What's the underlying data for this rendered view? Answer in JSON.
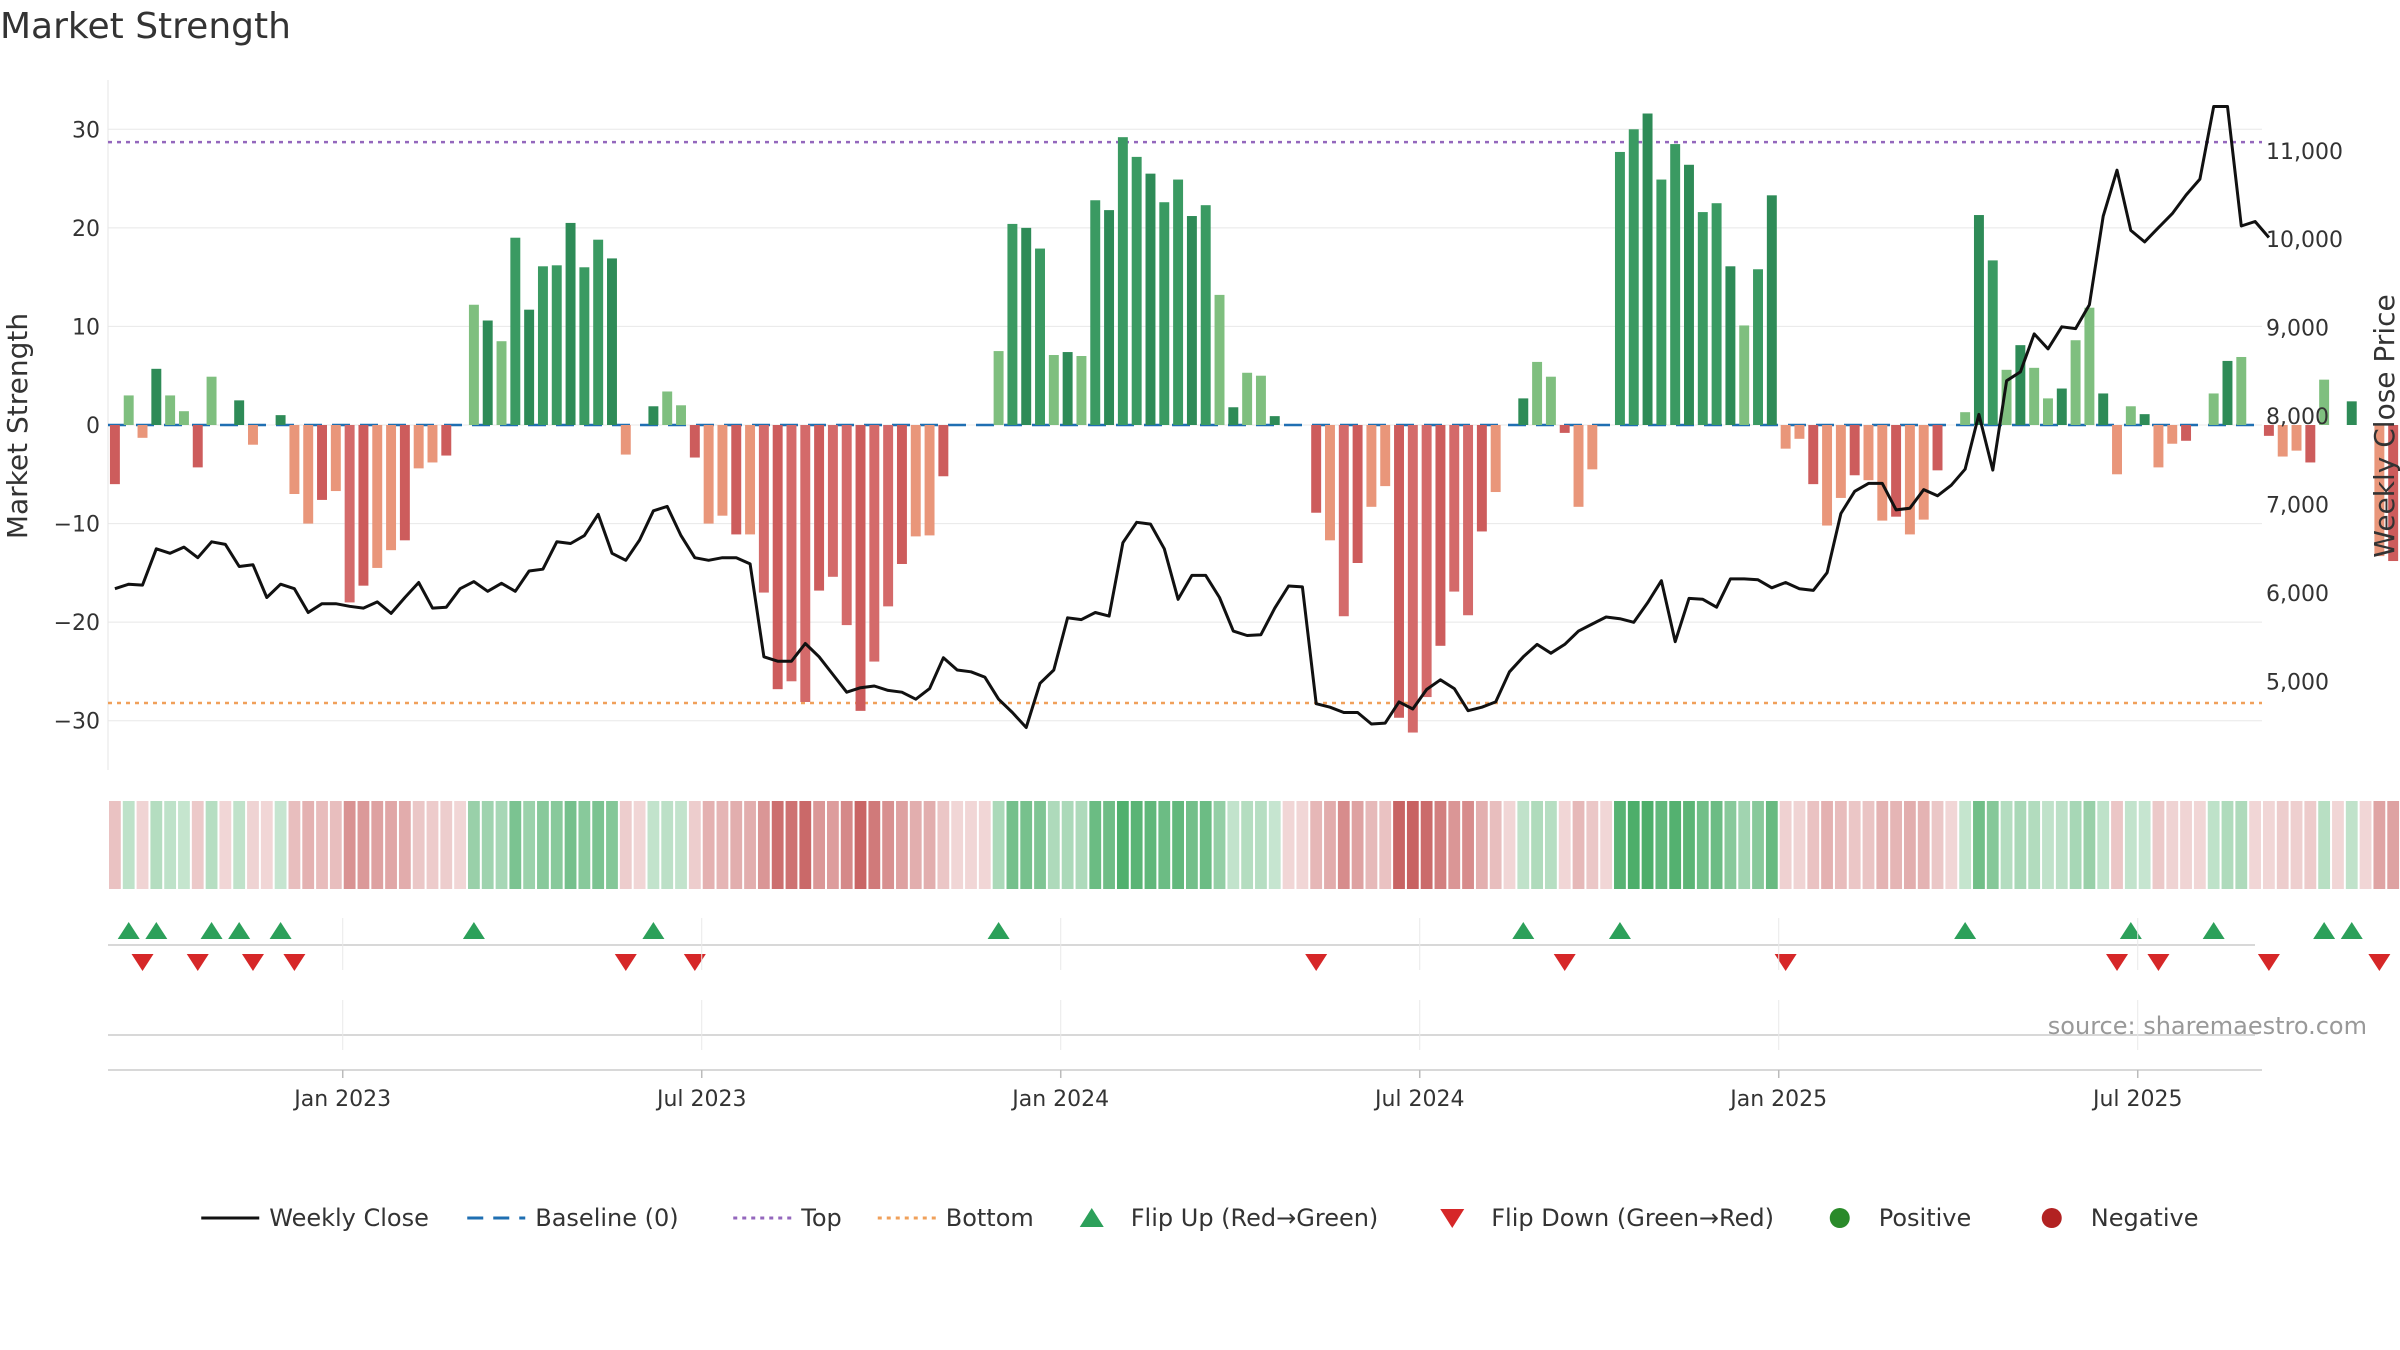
{
  "chart_data": {
    "type": "bar",
    "title": "Market Strength",
    "ylabel": "Market Strength",
    "y2label": "Weekly Close Price",
    "ylim": [
      -35,
      35
    ],
    "y2lim": [
      4000,
      11800
    ],
    "y_ticks": [
      30,
      20,
      10,
      0,
      -10,
      -20,
      -30
    ],
    "y_tick_labels": [
      "30",
      "20",
      "10",
      "0",
      "−10",
      "−20",
      "−30"
    ],
    "y2_ticks": [
      11000,
      10000,
      9000,
      8000,
      7000,
      6000,
      5000
    ],
    "y2_tick_labels": [
      "11,000",
      "10,000",
      "9,000",
      "8,000",
      "7,000",
      "6,000",
      "5,000"
    ],
    "x_tick_labels": [
      {
        "week": 17,
        "label": "Jan 2023"
      },
      {
        "week": 43,
        "label": "Jul 2023"
      },
      {
        "week": 69,
        "label": "Jan 2024"
      },
      {
        "week": 95,
        "label": "Jul 2024"
      },
      {
        "week": 121,
        "label": "Jan 2025"
      },
      {
        "week": 147,
        "label": "Jul 2025"
      }
    ],
    "reference_lines": {
      "baseline": 0,
      "top": 28.7,
      "bottom": -28.2
    },
    "week_range": [
      0,
      156
    ],
    "strength": [
      -6,
      3,
      -1.3,
      5.7,
      3,
      1.4,
      -4.3,
      4.9,
      0,
      2.5,
      -2,
      0,
      1,
      -7,
      -10,
      -7.6,
      -6.7,
      -18,
      -16.3,
      -14.5,
      -12.7,
      -11.7,
      -4.4,
      -3.8,
      -3.1,
      0,
      12.2,
      10.6,
      8.5,
      19,
      11.7,
      16.1,
      16.2,
      20.5,
      16,
      18.8,
      16.9,
      -3,
      0,
      1.9,
      3.4,
      2,
      -3.3,
      -10,
      -9.2,
      -11.1,
      -11.1,
      -17,
      -26.8,
      -26,
      -28.1,
      -16.8,
      -15.4,
      -20.3,
      -29,
      -24,
      -18.4,
      -14.1,
      -11.3,
      -11.2,
      -5.2,
      0,
      0,
      0,
      7.5,
      20.4,
      20,
      17.9,
      7.1,
      7.4,
      7,
      22.8,
      21.8,
      29.2,
      27.2,
      25.5,
      22.6,
      24.9,
      21.2,
      22.3,
      13.2,
      1.8,
      5.3,
      5,
      0.9,
      0,
      0,
      -8.9,
      -11.7,
      -19.4,
      -14,
      -8.3,
      -6.2,
      -29.7,
      -31.2,
      -27.6,
      -22.4,
      -16.9,
      -19.3,
      -10.8,
      -6.8,
      0,
      2.7,
      6.4,
      4.9,
      -0.8,
      -8.3,
      -4.5,
      0,
      27.7,
      30,
      31.6,
      24.9,
      28.5,
      26.4,
      21.6,
      22.5,
      16.1,
      10.1,
      15.8,
      23.3,
      -2.4,
      -1.4,
      -6,
      -10.2,
      -7.4,
      -5.1,
      -5.6,
      -9.7,
      -9.3,
      -11.1,
      -9.6,
      -4.6,
      0,
      1.3,
      21.3,
      16.7,
      5.6,
      8.1,
      5.8,
      2.7,
      3.7,
      8.6,
      11.9,
      3.2,
      -5,
      1.9,
      1.1,
      -4.3,
      -1.9,
      -1.6,
      0,
      3.2,
      6.5,
      6.9,
      0,
      -1.1,
      -3.2,
      -2.6,
      -3.8,
      4.6,
      0,
      2.4,
      0,
      -13.3,
      -13.8,
      -14.3
    ],
    "weekly_close": [
      6050,
      6100,
      6090,
      6500,
      6450,
      6520,
      6400,
      6580,
      6550,
      6300,
      6320,
      5950,
      6100,
      6050,
      5780,
      5880,
      5880,
      5850,
      5830,
      5900,
      5770,
      5950,
      6120,
      5830,
      5840,
      6050,
      6130,
      6020,
      6110,
      6020,
      6250,
      6270,
      6580,
      6560,
      6650,
      6890,
      6450,
      6370,
      6600,
      6930,
      6980,
      6650,
      6400,
      6370,
      6400,
      6400,
      6330,
      5280,
      5230,
      5230,
      5430,
      5280,
      5080,
      4880,
      4930,
      4950,
      4900,
      4880,
      4800,
      4920,
      5270,
      5130,
      5110,
      5050,
      4800,
      4650,
      4480,
      4980,
      5130,
      5720,
      5700,
      5780,
      5740,
      6570,
      6800,
      6780,
      6500,
      5930,
      6200,
      6200,
      5950,
      5570,
      5520,
      5530,
      5830,
      6080,
      6070,
      4750,
      4710,
      4650,
      4650,
      4520,
      4530,
      4770,
      4690,
      4910,
      5020,
      4920,
      4670,
      4710,
      4770,
      5110,
      5280,
      5420,
      5320,
      5420,
      5570,
      5650,
      5730,
      5710,
      5670,
      5890,
      6140,
      5450,
      5940,
      5930,
      5840,
      6160,
      6160,
      6150,
      6060,
      6120,
      6050,
      6030,
      6230,
      6900,
      7150,
      7240,
      7240,
      6940,
      6960,
      7170,
      7100,
      7220,
      7400,
      8020,
      7390,
      8400,
      8500,
      8930,
      8760,
      9010,
      8990,
      9260,
      10260,
      10780,
      10100,
      9970,
      10130,
      10290,
      10500,
      10680,
      11500,
      11500,
      10150,
      10200,
      10020
    ]
  },
  "legend": [
    {
      "label": "Weekly Close",
      "type": "line",
      "color": "#111111"
    },
    {
      "label": "Baseline (0)",
      "type": "dash",
      "color": "#1f6fb2"
    },
    {
      "label": "Top",
      "type": "dot",
      "color": "#9467bd"
    },
    {
      "label": "Bottom",
      "type": "dot",
      "color": "#f0a05a"
    },
    {
      "label": "Flip Up (Red→Green)",
      "type": "tri-up",
      "color": "#2ca05a"
    },
    {
      "label": "Flip Down (Green→Red)",
      "type": "tri-down",
      "color": "#d62728"
    },
    {
      "label": "Positive",
      "type": "circle",
      "color": "#2a8a2a"
    },
    {
      "label": "Negative",
      "type": "circle",
      "color": "#b22222"
    }
  ],
  "source_note": "source: sharemaestro.com"
}
